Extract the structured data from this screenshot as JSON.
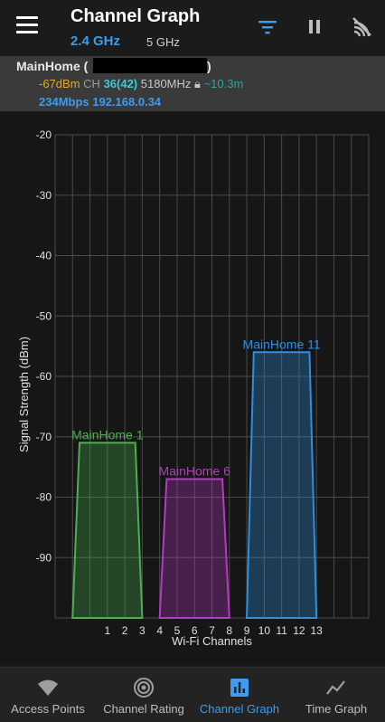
{
  "app_bar": {
    "title": "Channel Graph",
    "band_selected": "2.4 GHz",
    "band_other": "5 GHz",
    "actions": [
      "filter-icon",
      "pause-icon",
      "wifi-off-icon"
    ]
  },
  "connection": {
    "ssid": "MainHome (",
    "ssid_close": ")",
    "signal": "-67dBm",
    "ch_label": "CH",
    "channel": "36(42)",
    "frequency": "5180MHz",
    "distance": "~10.3m",
    "link": "234Mbps 192.168.0.34"
  },
  "chart_data": {
    "type": "area",
    "ylabel": "Signal Strength (dBm)",
    "xlabel": "Wi-Fi Channels",
    "ylim": [
      -100,
      -20
    ],
    "yticks": [
      -20,
      -30,
      -40,
      -50,
      -60,
      -70,
      -80,
      -90
    ],
    "xticks": [
      1,
      2,
      3,
      4,
      5,
      6,
      7,
      8,
      9,
      10,
      11,
      12,
      13
    ],
    "grid": true,
    "series": [
      {
        "name": "MainHome 1",
        "channel": 1,
        "dbm": -71,
        "color": "#4caf50"
      },
      {
        "name": "MainHome 6",
        "channel": 6,
        "dbm": -77,
        "color": "#b23bc2"
      },
      {
        "name": "MainHome 11",
        "channel": 11,
        "dbm": -56,
        "color": "#2f8ee0"
      }
    ]
  },
  "bottom_nav": [
    {
      "label": "Access Points",
      "icon": "wifi-icon",
      "active": false
    },
    {
      "label": "Channel Rating",
      "icon": "broadcast-icon",
      "active": false
    },
    {
      "label": "Channel Graph",
      "icon": "bar-chart-icon",
      "active": true
    },
    {
      "label": "Time Graph",
      "icon": "line-chart-icon",
      "active": false
    }
  ]
}
